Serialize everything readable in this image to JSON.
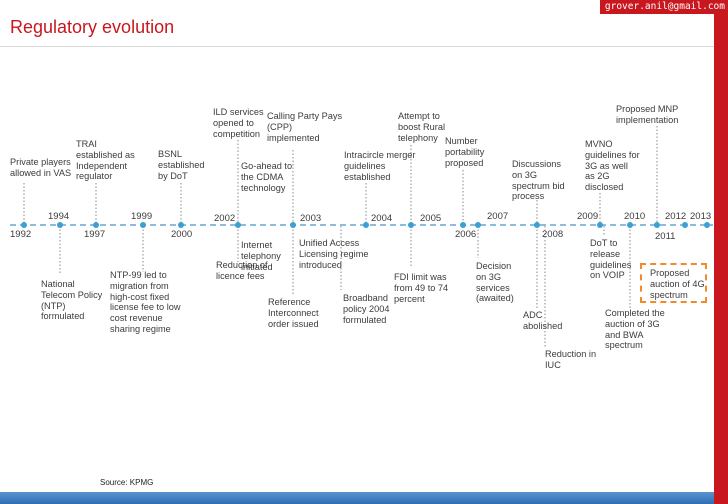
{
  "header": {
    "email": "grover.anil@gmail.com",
    "title": "Regulatory evolution"
  },
  "source": "Source: KPMG",
  "years": [
    "1992",
    "1994",
    "1997",
    "1999",
    "2000",
    "2002",
    "2003",
    "2004",
    "2005",
    "2006",
    "2007",
    "2008",
    "2009",
    "2010",
    "2011",
    "2012",
    "2013"
  ],
  "events_above": [
    "Private players\nallowed in VAS",
    "TRAI\nestablished as\nIndependent\nregulator",
    "BSNL\nestablished\nby DoT",
    "ILD services\nopened to\ncompetition",
    "Go-ahead to\nthe CDMA\ntechnology",
    "Calling Party Pays\n(CPP)\nimplemented",
    "Intracircle merger\nguidelines\nestablished",
    "Attempt to\nboost Rural\ntelephony",
    "Number\nportability\nproposed",
    "Discussions\non 3G\nspectrum bid\nprocess",
    "MVNO\nguidelines for\n3G as well\nas 2G\ndisclosed",
    "Proposed MNP\nimplementation"
  ],
  "events_below": [
    "National\nTelecom Policy\n(NTP)\nformulated",
    "NTP-99 led to\nmigration from\nhigh-cost fixed\nlicense fee to low\ncost revenue\nsharing regime",
    "Reduction of\nlicence fees",
    "Internet\ntelephony\ninitiated",
    "Reference\nInterconnect\norder issued",
    "Unified Access\nLicensing regime\nintroduced",
    "Broadband\npolicy 2004\nformulated",
    "FDI limit was\nfrom 49 to 74\npercent",
    "Decision\non 3G\nservices\n(awaited)",
    "ADC\nabolished",
    "Reduction in\nIUC",
    "DoT to\nrelease\nguidelines\non VOIP",
    "Completed the\nauction of 3G\nand BWA\nspectrum"
  ],
  "highlight": "Proposed\nauction of 4G\nspectrum",
  "colors": {
    "brand_red": "#c8171e",
    "timeline": "#7fb3d9",
    "marker": "#3ca0d4",
    "highlight_border": "#f08a2c"
  }
}
